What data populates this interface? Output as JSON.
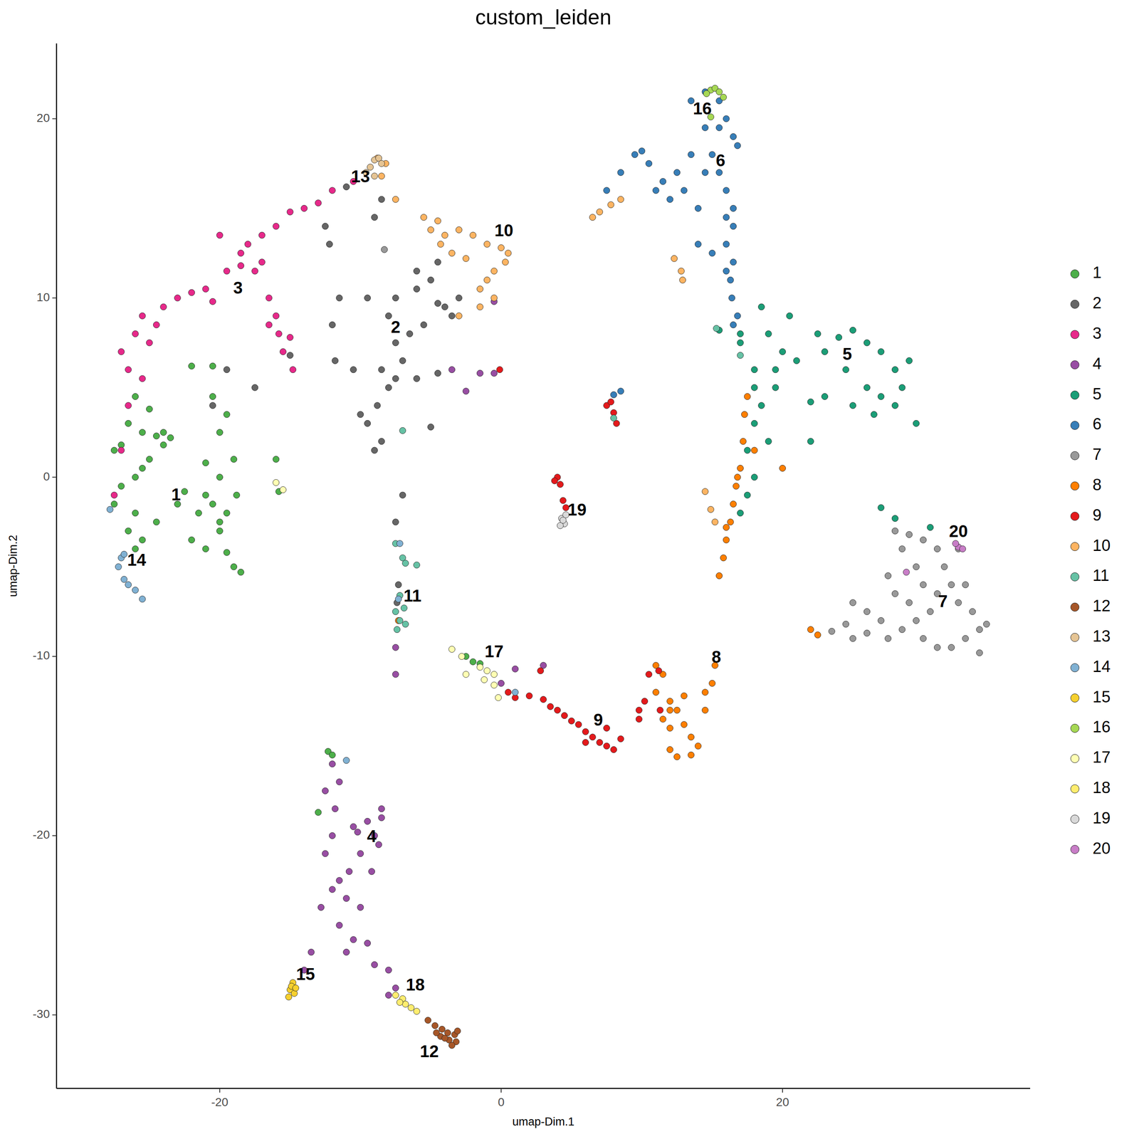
{
  "chart_data": {
    "type": "scatter",
    "title": "custom_leiden",
    "x_label": "umap-Dim.1",
    "y_label": "umap-Dim.2",
    "xlim": [
      -31.6,
      37.6
    ],
    "ylim": [
      -34.1,
      24.2
    ],
    "xticks": [
      -20,
      0,
      20
    ],
    "yticks": [
      -30,
      -20,
      -10,
      0,
      10,
      20
    ],
    "grid": false,
    "legend": "right",
    "marker": "circle",
    "annotations": [
      {
        "text": "1",
        "x": -23.1,
        "y": -1.05
      },
      {
        "text": "2",
        "x": -7.5,
        "y": 8.3
      },
      {
        "text": "3",
        "x": -18.7,
        "y": 10.5
      },
      {
        "text": "4",
        "x": -9.2,
        "y": -20.1
      },
      {
        "text": "5",
        "x": 24.6,
        "y": 6.8
      },
      {
        "text": "6",
        "x": 15.6,
        "y": 17.6
      },
      {
        "text": "7",
        "x": 31.4,
        "y": -7.0
      },
      {
        "text": "8",
        "x": 15.3,
        "y": -10.1
      },
      {
        "text": "9",
        "x": 6.9,
        "y": -13.6
      },
      {
        "text": "10",
        "x": 0.2,
        "y": 13.7
      },
      {
        "text": "11",
        "x": -6.3,
        "y": -6.7
      },
      {
        "text": "12",
        "x": -5.1,
        "y": -32.1
      },
      {
        "text": "13",
        "x": -10.0,
        "y": 16.7
      },
      {
        "text": "14",
        "x": -25.9,
        "y": -4.7
      },
      {
        "text": "15",
        "x": -13.9,
        "y": -27.8
      },
      {
        "text": "16",
        "x": 14.3,
        "y": 20.5
      },
      {
        "text": "17",
        "x": -0.5,
        "y": -9.8
      },
      {
        "text": "18",
        "x": -6.1,
        "y": -28.4
      },
      {
        "text": "19",
        "x": 5.4,
        "y": -1.9
      },
      {
        "text": "20",
        "x": 32.5,
        "y": -3.1
      }
    ],
    "series": [
      {
        "name": "1",
        "color": "#4DAF4A",
        "x": [
          -27.5,
          -27,
          -26.5,
          -26,
          -25.5,
          -25,
          -24.5,
          -24,
          -26,
          -27,
          -26.5,
          -25.5,
          -26,
          -24.5,
          -25,
          -23.5,
          -25.5,
          -27.5,
          -24,
          -26,
          -21,
          -22,
          -20,
          -19,
          -18.5,
          -20.5,
          -21.5,
          -19.5,
          -20,
          -19,
          -19.5,
          -20.5,
          -20,
          -22.5,
          -21,
          -19.5,
          -18.8,
          -20,
          -21,
          -23,
          -16,
          -15.8,
          -22,
          -20.5,
          -12.3,
          -13,
          -2.5,
          -2,
          -1.5,
          -12
        ],
        "values": [
          -1.5,
          1.8,
          3,
          4.5,
          2.5,
          1,
          2.3,
          2.5,
          0,
          -0.5,
          -3,
          -3.5,
          -2,
          -2.5,
          3.8,
          2.2,
          0.5,
          1.5,
          1.8,
          -4,
          -1,
          -3.5,
          -3,
          -5,
          -5.3,
          -1.5,
          -2,
          -2,
          0,
          1,
          3.5,
          4.5,
          2.5,
          -0.8,
          -4,
          -4.2,
          -1,
          -2.5,
          0.8,
          -1.5,
          1,
          -0.8,
          6.2,
          6.2,
          -15.3,
          -18.7,
          -10,
          -10.3,
          -10.4,
          -15.5
        ]
      },
      {
        "name": "2",
        "color": "#666666",
        "x": [
          -9,
          -8.5,
          -9.5,
          -10,
          -8.8,
          -8,
          -7.5,
          -8.5,
          -7,
          -7.5,
          -6.5,
          -8,
          -9.5,
          -7.5,
          -6,
          -5,
          -4.5,
          -6,
          -4,
          -3.5,
          -3,
          -4.5,
          -5.5,
          -9,
          -12.5,
          -12.2,
          -11.5,
          -12,
          -10.5,
          -11.8,
          -15,
          -17.5,
          -19.5,
          -20.5,
          -6,
          -4.5,
          -11,
          -8.5,
          -7,
          -7.5,
          -7.3,
          -7.4,
          -5
        ],
        "values": [
          1.5,
          2,
          3,
          3.5,
          4,
          5,
          5.5,
          6,
          6.5,
          7.5,
          8,
          9,
          10,
          10,
          10.5,
          11,
          12,
          11.5,
          9.5,
          9,
          10,
          9.7,
          8.5,
          14.5,
          14,
          13,
          10,
          8.5,
          6,
          6.5,
          6.8,
          5,
          6,
          4,
          5.5,
          5.8,
          16.2,
          15.5,
          -1,
          -2.5,
          -6,
          -7,
          2.8
        ]
      },
      {
        "name": "3",
        "color": "#E7298A",
        "x": [
          -27,
          -26.5,
          -26,
          -25.5,
          -25,
          -24.5,
          -24,
          -23,
          -22,
          -21,
          -20.5,
          -19.5,
          -18.5,
          -18,
          -17,
          -16,
          -15,
          -14,
          -13,
          -17.5,
          -16.5,
          -16,
          -15.8,
          -15.5,
          -14.8,
          -15,
          -16.5,
          -17,
          -18.5,
          -26.5,
          -27.5,
          -27,
          -12,
          -10.5,
          -25.5,
          -20
        ],
        "values": [
          7,
          6,
          8,
          9,
          7.5,
          8.5,
          9.5,
          10,
          10.3,
          10.5,
          9.8,
          11.5,
          12.5,
          13,
          13.5,
          14,
          14.8,
          15,
          15.3,
          11.5,
          10,
          9,
          8,
          7,
          6,
          7.8,
          8.5,
          12,
          11.8,
          4,
          -1,
          1.5,
          16,
          16.5,
          5.5,
          13.5
        ]
      },
      {
        "name": "4",
        "color": "#984EA3",
        "x": [
          -12,
          -11.5,
          -12.5,
          -11.8,
          -12,
          -10.5,
          -9.5,
          -8.5,
          -9,
          -10,
          -10.8,
          -11.5,
          -12,
          -11,
          -10,
          -11.5,
          -10.5,
          -9.5,
          -9,
          -8,
          -7.5,
          -8,
          -12.5,
          -10.2,
          -9.2,
          -8.7,
          -11,
          -12.8,
          -13.5,
          -14,
          -7.5,
          -7.5,
          -3.5,
          -2.5,
          -1.5,
          -0.5,
          -0.5,
          1,
          3,
          0,
          -8.5
        ],
        "values": [
          -16,
          -17,
          -17.5,
          -18.5,
          -20,
          -19.5,
          -19.2,
          -19,
          -20,
          -21,
          -22,
          -22.5,
          -23,
          -23.5,
          -24,
          -25,
          -25.8,
          -26,
          -27.2,
          -27.5,
          -28.5,
          -28.9,
          -21,
          -19.8,
          -22,
          -20.5,
          -26.5,
          -24,
          -26.5,
          -27.5,
          -9.5,
          -11,
          6,
          4.8,
          5.8,
          5.8,
          9.8,
          -10.7,
          -10.5,
          -11.5,
          -18.5
        ]
      },
      {
        "name": "5",
        "color": "#1B9E77",
        "x": [
          17,
          18,
          18.5,
          19,
          20,
          20.5,
          19.5,
          18.5,
          18,
          19,
          17.5,
          18,
          17.5,
          17,
          21,
          22.5,
          23,
          24,
          25,
          26,
          27,
          28,
          28.5,
          29,
          28,
          27,
          26,
          25,
          23,
          22,
          24.5,
          26.5,
          29.5,
          17,
          15.5,
          18,
          19.5,
          27,
          28,
          30.5,
          22
        ],
        "values": [
          7.5,
          6,
          9.5,
          8,
          7,
          9,
          5,
          4,
          3,
          2,
          1.5,
          0,
          -1,
          -2,
          6.5,
          8,
          7,
          7.8,
          8.2,
          7.5,
          7,
          6,
          5,
          6.5,
          4,
          4.5,
          5,
          4,
          4.5,
          4.2,
          6,
          3.5,
          3,
          8,
          8.2,
          5,
          6,
          -1.7,
          -2.3,
          -2.8,
          2
        ]
      },
      {
        "name": "6",
        "color": "#377EB8",
        "x": [
          13.5,
          14.5,
          15.5,
          16,
          16.5,
          16.8,
          15.5,
          14.5,
          15,
          15.5,
          16,
          16.5,
          16.5,
          16,
          16.5,
          16.3,
          16.4,
          16.8,
          16.5,
          15,
          16,
          14.5,
          13.5,
          12.5,
          11.5,
          10.5,
          9.5,
          8.5,
          7.5,
          11,
          13,
          12,
          14,
          14,
          10,
          16,
          8,
          8.5
        ],
        "values": [
          21,
          21.5,
          21,
          20,
          19,
          18.5,
          19.5,
          19.5,
          18,
          17,
          16,
          15,
          14,
          13,
          12,
          11,
          10,
          9,
          8.5,
          12.5,
          14.5,
          17,
          18,
          17,
          16.5,
          17.5,
          18,
          17,
          16,
          16,
          16,
          15.5,
          15,
          13,
          18.2,
          11.5,
          4.6,
          4.8
        ]
      },
      {
        "name": "7",
        "color": "#999999",
        "x": [
          23.5,
          24.5,
          25,
          26,
          27,
          27.5,
          28.5,
          29.5,
          30,
          31,
          32,
          33,
          34,
          34.5,
          33.5,
          32.5,
          32,
          31.5,
          31,
          30,
          29,
          28.5,
          29.5,
          30,
          29,
          28,
          27.5,
          28,
          32.5,
          33,
          30.5,
          26,
          25,
          31,
          34,
          -8.3
        ],
        "values": [
          -8.6,
          -8.2,
          -9,
          -8.7,
          -8,
          -9,
          -8.5,
          -8,
          -9,
          -9.5,
          -9.5,
          -9,
          -8.5,
          -8.2,
          -7.5,
          -7,
          -6,
          -5,
          -4,
          -3.5,
          -3.2,
          -4,
          -5,
          -6,
          -7,
          -6.5,
          -5.5,
          -3,
          -4,
          -6,
          -7.5,
          -7.5,
          -7,
          -6.5,
          -9.8,
          12.7
        ]
      },
      {
        "name": "8",
        "color": "#FF7F00",
        "x": [
          17.5,
          17.3,
          17.2,
          17,
          16.7,
          16.5,
          16.3,
          16,
          15.8,
          15.5,
          16,
          16.8,
          18,
          20,
          11,
          11.5,
          11,
          12,
          12.5,
          13,
          12,
          13.5,
          14,
          13.5,
          12.5,
          12,
          14.5,
          15,
          15.2,
          14.5,
          11.5,
          13,
          -7.3,
          22,
          22.5,
          12
        ],
        "values": [
          4.5,
          3.5,
          2,
          0.5,
          -0.5,
          -1.5,
          -2.5,
          -3.5,
          -4.5,
          -5.5,
          -2.8,
          0,
          1.5,
          0.5,
          -10.5,
          -11,
          -12,
          -12.5,
          -13,
          -13.8,
          -14,
          -14.5,
          -15,
          -15.5,
          -15.6,
          -15.2,
          -13,
          -11.5,
          -10.5,
          -12,
          -13.5,
          -12.2,
          -8,
          -8.5,
          -8.8,
          -13
        ]
      },
      {
        "name": "9",
        "color": "#E41A1C",
        "x": [
          1,
          2,
          3,
          3.5,
          4,
          4.5,
          5,
          5.5,
          6,
          6.5,
          7,
          7.5,
          8,
          8.5,
          6,
          7.5,
          9.8,
          10.2,
          10.5,
          11.2,
          9.8,
          11.3,
          7.5,
          8,
          7.8,
          8.2,
          4,
          4.2,
          4.4,
          4.6,
          3.8,
          -0.1,
          2.8,
          0.5
        ],
        "values": [
          -12.3,
          -12.2,
          -12.4,
          -12.8,
          -13,
          -13.3,
          -13.6,
          -13.8,
          -14.2,
          -14.5,
          -14.8,
          -15,
          -15.2,
          -14.6,
          -14.8,
          -14,
          -13,
          -12.5,
          -11,
          -10.8,
          -13.5,
          -13,
          4,
          3.6,
          4.2,
          3,
          0,
          -0.4,
          -1.3,
          -1.7,
          -0.2,
          6,
          -10.8,
          -12
        ]
      },
      {
        "name": "10",
        "color": "#FDB462",
        "x": [
          -5.5,
          -4.5,
          -4,
          -3,
          -2,
          -1,
          0,
          0.5,
          0.3,
          -0.5,
          -1,
          -1.5,
          -0.5,
          -1.5,
          -3.5,
          -5,
          -2.5,
          -3,
          -7.5,
          -8.5,
          -8.2,
          -8.8,
          7,
          7.8,
          8.5,
          6.5,
          12.3,
          12.8,
          12.9,
          14.5,
          14.9,
          15.2,
          -4.3
        ],
        "values": [
          14.5,
          14.3,
          13.5,
          13.8,
          13.5,
          13,
          12.8,
          12.5,
          12,
          11.5,
          11,
          10.5,
          10,
          9.5,
          12.5,
          13.8,
          12.2,
          9,
          15.5,
          16.8,
          17.5,
          17.8,
          14.8,
          15.2,
          15.5,
          14.5,
          12.2,
          11.5,
          11,
          -0.8,
          -1.8,
          -2.5,
          13
        ]
      },
      {
        "name": "11",
        "color": "#66C2A5",
        "x": [
          -7.5,
          -7,
          -6.8,
          -6,
          -7.2,
          -7.5,
          -7.2,
          -7.4,
          -6.9,
          -6.8,
          8,
          15.3,
          17,
          -7
        ],
        "values": [
          -3.7,
          -4.5,
          -4.8,
          -4.9,
          -6.6,
          -7.5,
          -8,
          -8.5,
          -7.3,
          -8.2,
          3.3,
          8.3,
          6.8,
          2.6
        ]
      },
      {
        "name": "12",
        "color": "#A65628",
        "x": [
          -5.2,
          -4.7,
          -4.2,
          -3.8,
          -3.3,
          -3.2,
          -3.7,
          -4.3,
          -3.1,
          -3.5,
          -4,
          -4.6
        ],
        "values": [
          -30.3,
          -30.6,
          -30.8,
          -31,
          -31.1,
          -31.5,
          -31.4,
          -31.2,
          -30.9,
          -31.7,
          -31.3,
          -31
        ]
      },
      {
        "name": "13",
        "color": "#E5C494",
        "x": [
          -9,
          -8.7,
          -9.3,
          -8.5,
          -9.6,
          -9
        ],
        "values": [
          17.7,
          17.8,
          17.3,
          17.5,
          17,
          16.8
        ]
      },
      {
        "name": "14",
        "color": "#80B1D3",
        "x": [
          -27,
          -27.2,
          -26.8,
          -26.5,
          -26,
          -25.5,
          -27.8,
          -26.8,
          -7.2,
          -7.3,
          -11,
          1
        ],
        "values": [
          -4.5,
          -5,
          -5.7,
          -6,
          -6.3,
          -6.8,
          -1.8,
          -4.3,
          -3.7,
          -6.8,
          -15.8,
          -12
        ]
      },
      {
        "name": "15",
        "color": "#F6D02F",
        "x": [
          -14.8,
          -15,
          -14.7,
          -15.1,
          -14.9,
          -14.6
        ],
        "values": [
          -28.2,
          -28.6,
          -28.8,
          -29,
          -28.4,
          -28.5
        ]
      },
      {
        "name": "16",
        "color": "#A6D854",
        "x": [
          14.9,
          15.2,
          15.5,
          14.6,
          15.8,
          14.9
        ],
        "values": [
          21.6,
          21.7,
          21.5,
          21.4,
          21.2,
          20.1
        ]
      },
      {
        "name": "17",
        "color": "#FFFFB3",
        "x": [
          -3.5,
          -2.8,
          -2.5,
          -1.5,
          -1,
          -0.5,
          -1.2,
          -0.5,
          -0.2,
          -16,
          -15.5
        ],
        "values": [
          -9.6,
          -10,
          -11,
          -10.6,
          -10.8,
          -11,
          -11.3,
          -11.6,
          -12.3,
          -0.3,
          -0.7
        ]
      },
      {
        "name": "18",
        "color": "#FFED6F",
        "x": [
          -7.5,
          -7,
          -6.8,
          -6.4,
          -6,
          -7.2
        ],
        "values": [
          -28.9,
          -29.1,
          -29.4,
          -29.6,
          -29.8,
          -29.3
        ]
      },
      {
        "name": "19",
        "color": "#D9D9D9",
        "x": [
          4.3,
          4.5,
          4.2,
          4.6,
          4.4
        ],
        "values": [
          -2.3,
          -2.6,
          -2.7,
          -2.1,
          -2.4
        ]
      },
      {
        "name": "20",
        "color": "#C87DC7",
        "x": [
          32.5,
          32.8,
          32.3,
          28.8
        ],
        "values": [
          -3.9,
          -4,
          -3.7,
          -5.3
        ]
      }
    ]
  }
}
